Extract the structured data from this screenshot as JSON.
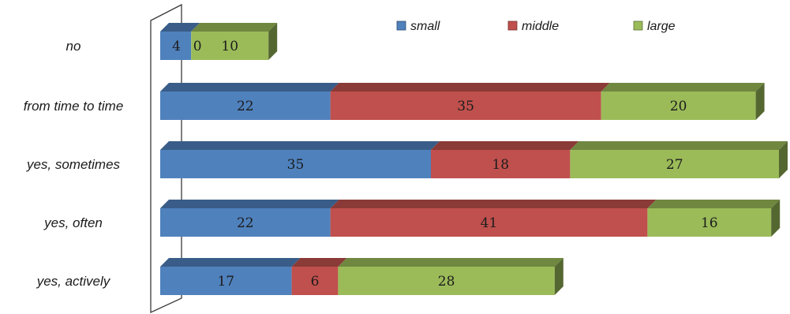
{
  "chart_data": {
    "type": "bar",
    "orientation": "horizontal",
    "stacked": true,
    "style": "3d",
    "categories": [
      "no",
      "from time to time",
      "yes, sometimes",
      "yes, often",
      "yes, actively"
    ],
    "series": [
      {
        "name": "small",
        "color": "#4f81bd",
        "values": [
          4,
          22,
          35,
          22,
          17
        ]
      },
      {
        "name": "middle",
        "color": "#c0504d",
        "values": [
          0,
          35,
          18,
          41,
          6
        ]
      },
      {
        "name": "large",
        "color": "#9bbb59",
        "values": [
          10,
          20,
          27,
          16,
          28
        ]
      }
    ],
    "legend": {
      "position": "top-right",
      "items": [
        "small",
        "middle",
        "large"
      ]
    },
    "data_labels": [
      [
        "4",
        "0",
        "10"
      ],
      [
        "22",
        "35",
        "20"
      ],
      [
        "35",
        "18",
        "27"
      ],
      [
        "22",
        "41",
        "16"
      ],
      [
        "17",
        "6",
        "28"
      ]
    ],
    "xlim": [
      0,
      80
    ],
    "grid": false,
    "title": "",
    "xlabel": "",
    "ylabel": ""
  }
}
